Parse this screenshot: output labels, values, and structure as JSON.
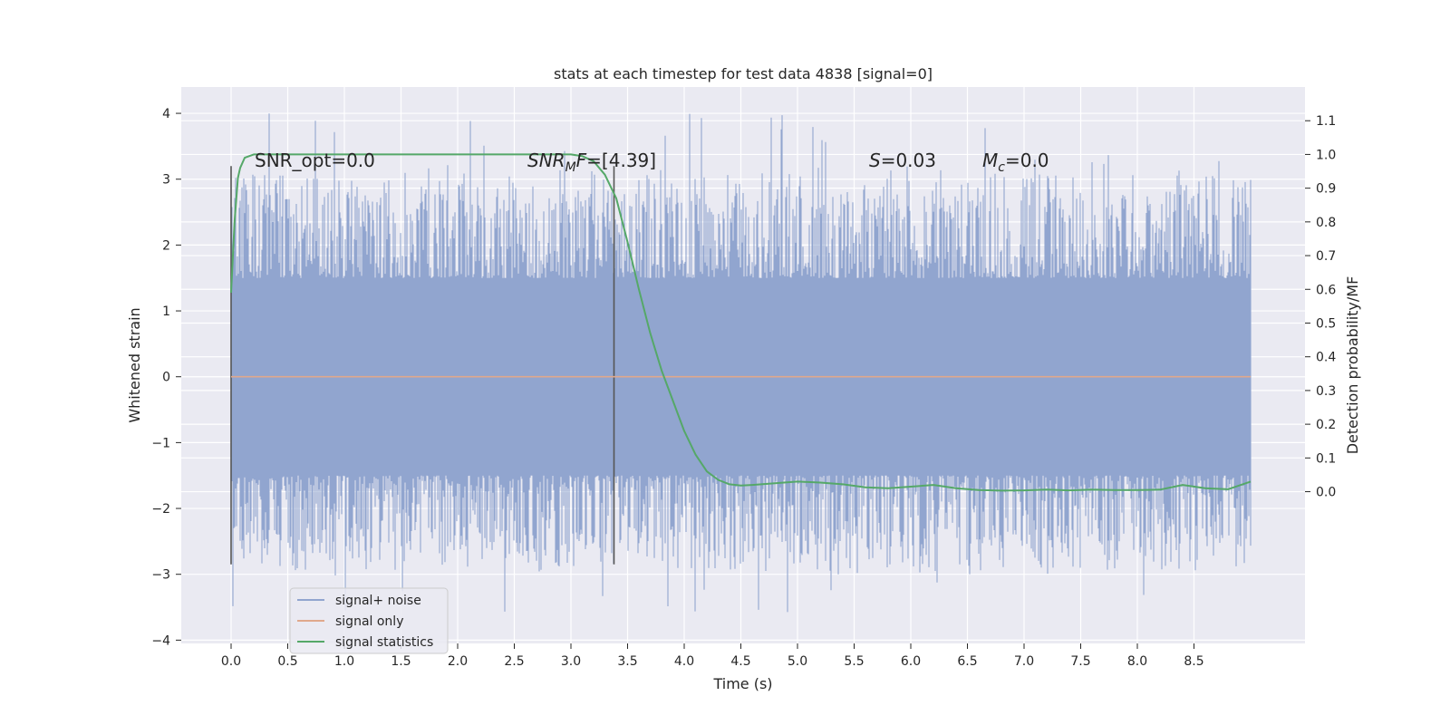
{
  "chart_data": {
    "type": "line",
    "title": "stats at each timestep for test data 4838 [signal=0]",
    "xlabel": "Time (s)",
    "ylabel": "Whitened strain",
    "y2label": "Detection probability/MF",
    "xlim": [
      -0.44,
      9.48
    ],
    "ylim": [
      -4.05,
      4.4
    ],
    "y2lim": [
      -0.45,
      1.2
    ],
    "xticks": [
      "0.0",
      "0.5",
      "1.0",
      "1.5",
      "2.0",
      "2.5",
      "3.0",
      "3.5",
      "4.0",
      "4.5",
      "5.0",
      "5.5",
      "6.0",
      "6.5",
      "7.0",
      "7.5",
      "8.0",
      "8.5"
    ],
    "xtick_values": [
      0.0,
      0.5,
      1.0,
      1.5,
      2.0,
      2.5,
      3.0,
      3.5,
      4.0,
      4.5,
      5.0,
      5.5,
      6.0,
      6.5,
      7.0,
      7.5,
      8.0,
      8.5
    ],
    "yticks": [
      "−4",
      "−3",
      "−2",
      "−1",
      "0",
      "1",
      "2",
      "3",
      "4"
    ],
    "ytick_values": [
      -4,
      -3,
      -2,
      -1,
      0,
      1,
      2,
      3,
      4
    ],
    "y2ticks": [
      "0.0",
      "0.1",
      "0.2",
      "0.3",
      "0.4",
      "0.5",
      "0.6",
      "0.7",
      "0.8",
      "0.9",
      "1.0",
      "1.1"
    ],
    "y2tick_values": [
      0.0,
      0.1,
      0.2,
      0.3,
      0.4,
      0.5,
      0.6,
      0.7,
      0.8,
      0.9,
      1.0,
      1.1
    ],
    "grid": true,
    "legend_position": "lower-left",
    "series": [
      {
        "name": "signal+ noise",
        "axis": "left",
        "color": "#91a5cf",
        "x_range": [
          0,
          9.0
        ],
        "band": [
          -1.4,
          1.4
        ],
        "peak": [
          -3.6,
          4.0
        ]
      },
      {
        "name": "signal only",
        "axis": "left",
        "color": "#e0a88c",
        "x": [
          0,
          9.0
        ],
        "y": [
          0,
          0
        ]
      },
      {
        "name": "signal statistics",
        "axis": "right",
        "color": "#55a868",
        "x": [
          0.0,
          0.03,
          0.06,
          0.08,
          0.12,
          0.2,
          0.4,
          1.0,
          2.0,
          2.5,
          3.0,
          3.1,
          3.2,
          3.3,
          3.4,
          3.5,
          3.6,
          3.7,
          3.8,
          3.9,
          4.0,
          4.1,
          4.2,
          4.3,
          4.4,
          4.5,
          4.6,
          4.8,
          5.0,
          5.2,
          5.4,
          5.6,
          5.8,
          6.0,
          6.2,
          6.4,
          6.6,
          6.8,
          7.0,
          7.2,
          7.4,
          7.6,
          7.8,
          8.0,
          8.2,
          8.4,
          8.6,
          8.8,
          9.0
        ],
        "y": [
          0.59,
          0.8,
          0.93,
          0.96,
          0.99,
          1.0,
          1.0,
          1.0,
          1.0,
          1.0,
          1.0,
          0.995,
          0.98,
          0.94,
          0.87,
          0.74,
          0.6,
          0.47,
          0.36,
          0.27,
          0.18,
          0.11,
          0.06,
          0.035,
          0.022,
          0.018,
          0.02,
          0.025,
          0.03,
          0.027,
          0.022,
          0.013,
          0.01,
          0.015,
          0.02,
          0.01,
          0.005,
          0.003,
          0.004,
          0.006,
          0.004,
          0.006,
          0.005,
          0.005,
          0.006,
          0.02,
          0.01,
          0.007,
          0.03
        ]
      }
    ],
    "vlines": [
      {
        "x": 0.0,
        "y_range": [
          -2.85,
          3.2
        ],
        "color": "#555555"
      },
      {
        "x": 3.38,
        "y_range": [
          -2.85,
          3.2
        ],
        "color": "#555555"
      }
    ],
    "annotations": {
      "snr_opt": "SNR_opt=0.0",
      "snr_mf_main": "SNR",
      "snr_mf_sub": "M",
      "snr_mf_tail": "F",
      "snr_mf_value": "=[4.39]",
      "s_label": "S",
      "s_value": "=0.03",
      "mc_main": "M",
      "mc_sub": "c",
      "mc_value": "=0.0"
    }
  }
}
